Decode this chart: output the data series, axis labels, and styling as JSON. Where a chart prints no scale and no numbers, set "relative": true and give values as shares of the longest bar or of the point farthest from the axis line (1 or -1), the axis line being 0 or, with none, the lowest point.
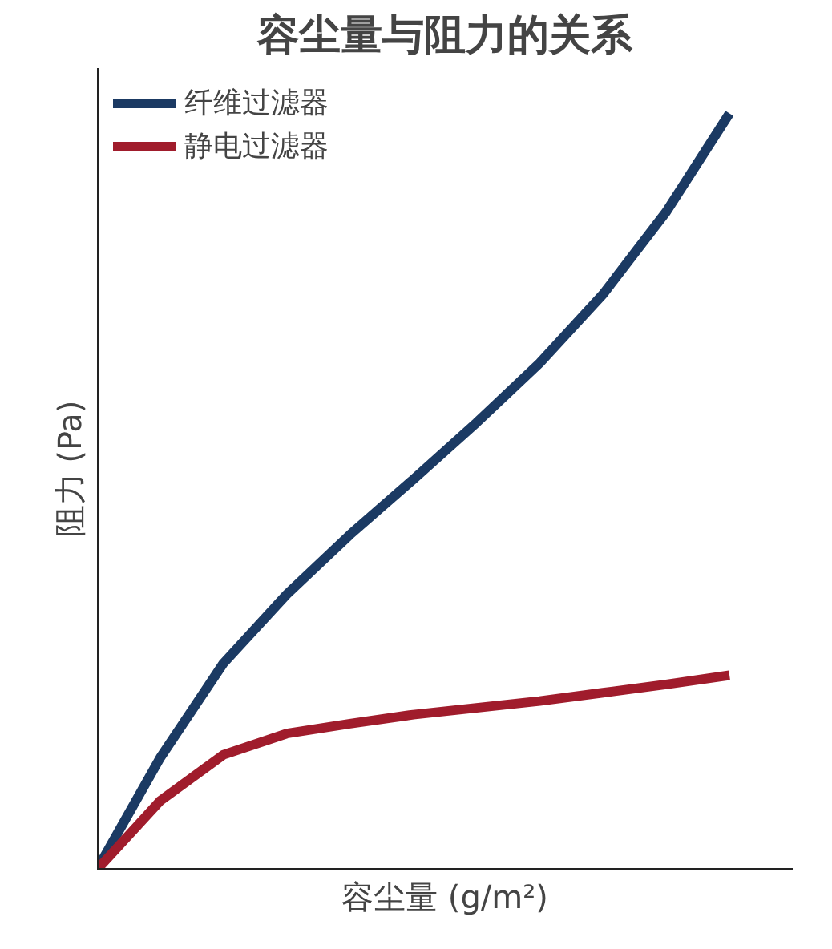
{
  "chart_data": {
    "type": "line",
    "title": "容尘量与阻力的关系",
    "xlabel": "容尘量 (g/m²)",
    "ylabel": "阻力 (Pa)",
    "relative": true,
    "categories": [
      null,
      null,
      null,
      null,
      null,
      null,
      null,
      null,
      null,
      null,
      null
    ],
    "series": [
      {
        "name": "纤维过滤器",
        "color": "#1b3a63",
        "values": [
          0,
          0.148,
          0.273,
          0.364,
          0.443,
          0.516,
          0.591,
          0.67,
          0.761,
          0.87,
          1
        ]
      },
      {
        "name": "静电过滤器",
        "color": "#a01c2c",
        "values": [
          0,
          0.091,
          0.152,
          0.18,
          0.193,
          0.205,
          0.214,
          0.223,
          0.234,
          0.245,
          0.257
        ]
      }
    ],
    "legend": "top left",
    "grid": false,
    "line_style": "solid",
    "marker": "none"
  }
}
